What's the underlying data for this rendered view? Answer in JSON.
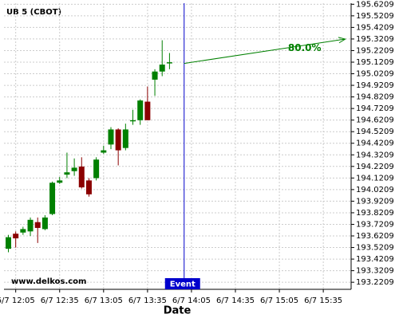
{
  "chart_data": {
    "type": "candlestick",
    "title": "UB 5 (CBOT)",
    "x_label": "Date",
    "watermark": "www.delkos.com",
    "xlim": [
      717,
      954
    ],
    "ylim": [
      193.16,
      195.63
    ],
    "grid": true,
    "xticks": [
      {
        "value": 725,
        "label": "6/7 12:05"
      },
      {
        "value": 755,
        "label": "6/7 12:35"
      },
      {
        "value": 785,
        "label": "6/7 13:05"
      },
      {
        "value": 815,
        "label": "6/7 13:35"
      },
      {
        "value": 845,
        "label": "6/7 14:05"
      },
      {
        "value": 875,
        "label": "6/7 14:35"
      },
      {
        "value": 905,
        "label": "6/7 15:05"
      },
      {
        "value": 935,
        "label": "6/7 15:35"
      }
    ],
    "yticks": [
      195.6209,
      195.5209,
      195.4209,
      195.3209,
      195.2209,
      195.1209,
      195.0209,
      194.9209,
      194.8209,
      194.7209,
      194.6209,
      194.5209,
      194.4209,
      194.3209,
      194.2209,
      194.1209,
      194.0209,
      193.9209,
      193.8209,
      193.7209,
      193.6209,
      193.5209,
      193.4209,
      193.3209,
      193.2209
    ],
    "up_color": "#008000",
    "down_color": "#8b0000",
    "x": [
      720,
      725,
      730,
      735,
      740,
      745,
      750,
      755,
      760,
      765,
      770,
      775,
      780,
      785,
      790,
      795,
      800,
      805,
      810,
      815,
      820,
      825,
      830
    ],
    "open": [
      193.51,
      193.64,
      193.65,
      193.66,
      193.74,
      193.68,
      193.81,
      194.08,
      194.15,
      194.18,
      194.22,
      194.1,
      194.12,
      194.34,
      194.41,
      194.54,
      194.38,
      194.61,
      194.62,
      194.78,
      194.97,
      195.04,
      195.11
    ],
    "high": [
      193.63,
      193.66,
      193.7,
      193.78,
      193.78,
      193.8,
      194.09,
      194.13,
      194.34,
      194.29,
      194.3,
      194.12,
      194.3,
      194.4,
      194.56,
      194.55,
      194.59,
      194.71,
      194.8,
      194.91,
      195.06,
      195.31,
      195.2
    ],
    "low": [
      193.48,
      193.52,
      193.63,
      193.62,
      193.56,
      193.67,
      193.8,
      194.07,
      194.12,
      194.14,
      194.03,
      193.96,
      194.1,
      194.33,
      194.37,
      194.23,
      194.36,
      194.58,
      194.58,
      194.62,
      194.83,
      195.0,
      195.06
    ],
    "close": [
      193.61,
      193.6,
      193.68,
      193.76,
      193.69,
      193.78,
      194.08,
      194.1,
      194.17,
      194.21,
      194.04,
      193.98,
      194.28,
      194.36,
      194.54,
      194.36,
      194.54,
      194.62,
      194.79,
      194.62,
      195.04,
      195.1,
      195.12
    ],
    "event": {
      "x": 840,
      "label": "Event",
      "color": "#0000cc"
    },
    "projection": {
      "x": [
        840,
        950
      ],
      "y": [
        195.11,
        195.32
      ],
      "label": "80.0%",
      "color": "#008000"
    }
  }
}
